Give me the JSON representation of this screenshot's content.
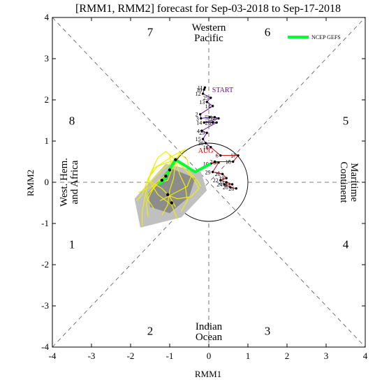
{
  "chart_data": {
    "type": "scatter",
    "title": "[RMM1, RMM2] forecast for Sep-03-2018 to Sep-17-2018",
    "xlabel": "RMM1",
    "ylabel": "RMM2",
    "xlim": [
      -4,
      4
    ],
    "ylim": [
      -4,
      4
    ],
    "xticks": [
      "-4",
      "-3",
      "-2",
      "-1",
      "0",
      "1",
      "2",
      "3",
      "4"
    ],
    "yticks": [
      "-4",
      "-3",
      "-2",
      "-1",
      "0",
      "1",
      "2",
      "3",
      "4"
    ],
    "grid": false,
    "legend": {
      "placement": "top-right",
      "entries": [
        {
          "name": "NCEP GEFS",
          "color": "#00ff33"
        }
      ]
    },
    "phase_numbers": [
      {
        "label": "7",
        "x": -1.5,
        "y": 3.65
      },
      {
        "label": "6",
        "x": 1.5,
        "y": 3.65
      },
      {
        "label": "8",
        "x": -3.5,
        "y": 1.5
      },
      {
        "label": "5",
        "x": 3.5,
        "y": 1.5
      },
      {
        "label": "1",
        "x": -3.5,
        "y": -1.5
      },
      {
        "label": "4",
        "x": 3.5,
        "y": -1.5
      },
      {
        "label": "2",
        "x": -1.5,
        "y": -3.6
      },
      {
        "label": "3",
        "x": 1.5,
        "y": -3.6
      }
    ],
    "regions": {
      "top": [
        "Western",
        "Pacific"
      ],
      "bottom": [
        "Indian",
        "Ocean"
      ],
      "left": [
        "West. Hem.",
        "and Africa"
      ],
      "right": [
        "Maritime",
        "Continent"
      ]
    },
    "observed": {
      "series": [
        {
          "name": "",
          "color": "#6a0dad",
          "month_label": "START",
          "points": [
            {
              "x": -0.1,
              "y": 2.3,
              "label": "11"
            },
            {
              "x": -0.12,
              "y": 2.25,
              "label": "10"
            },
            {
              "x": -0.15,
              "y": 2.15,
              "label": "12"
            },
            {
              "x": 0.05,
              "y": 2.05,
              "label": "25"
            },
            {
              "x": -0.05,
              "y": 1.95,
              "label": "13"
            },
            {
              "x": 0.1,
              "y": 1.85,
              "label": "14"
            },
            {
              "x": -0.22,
              "y": 1.65,
              "label": "2"
            },
            {
              "x": -0.2,
              "y": 1.55,
              "label": "3"
            },
            {
              "x": 0.02,
              "y": 1.58,
              "label": "5"
            },
            {
              "x": 0.15,
              "y": 1.58,
              "label": "31"
            },
            {
              "x": 0.25,
              "y": 1.55,
              "label": "30"
            },
            {
              "x": -0.12,
              "y": 1.45,
              "label": "14"
            },
            {
              "x": 0.1,
              "y": 1.45,
              "label": "28"
            },
            {
              "x": 0.2,
              "y": 1.45,
              "label": "27"
            },
            {
              "x": -0.18,
              "y": 1.25,
              "label": "4"
            },
            {
              "x": -0.05,
              "y": 1.2,
              "label": "29"
            },
            {
              "x": -0.15,
              "y": 1.05,
              "label": "15"
            },
            {
              "x": -0.08,
              "y": 0.95,
              "label": "30"
            },
            {
              "x": 0.05,
              "y": 0.85,
              "label": "16"
            }
          ]
        },
        {
          "name": "",
          "color": "#cc0000",
          "month_label": "AUG",
          "points": [
            {
              "x": 0.05,
              "y": 0.85,
              "label": "1"
            },
            {
              "x": 0.3,
              "y": 0.65,
              "label": "6"
            },
            {
              "x": 0.75,
              "y": 0.65,
              "label": "17"
            },
            {
              "x": 0.62,
              "y": 0.5,
              "label": "18"
            },
            {
              "x": 0.15,
              "y": 0.5,
              "label": "2"
            },
            {
              "x": 0.05,
              "y": 0.45,
              "label": "10"
            },
            {
              "x": 0.25,
              "y": 0.48,
              "label": "9"
            },
            {
              "x": 0.1,
              "y": 0.25,
              "label": "29"
            },
            {
              "x": 0.35,
              "y": 0.2,
              "label": "20"
            },
            {
              "x": 0.45,
              "y": 0.1,
              "label": "19"
            },
            {
              "x": 0.3,
              "y": 0.05,
              "label": "22"
            },
            {
              "x": 0.45,
              "y": 0.0,
              "label": "21"
            },
            {
              "x": 0.6,
              "y": -0.05,
              "label": "23"
            },
            {
              "x": 0.4,
              "y": -0.05,
              "label": "24"
            },
            {
              "x": 0.55,
              "y": -0.12,
              "label": "26"
            },
            {
              "x": 0.7,
              "y": -0.15,
              "label": "26"
            }
          ]
        }
      ]
    },
    "forecast_mean": {
      "name": "NCEP GEFS",
      "color": "#00ff33",
      "points": [
        {
          "x": 0.05,
          "y": 0.45
        },
        {
          "x": -0.35,
          "y": 0.25
        },
        {
          "x": -0.85,
          "y": 0.55
        },
        {
          "x": -0.95,
          "y": 0.4
        },
        {
          "x": -1.05,
          "y": 0.22
        },
        {
          "x": -1.15,
          "y": 0.05
        },
        {
          "x": -1.28,
          "y": -0.05
        }
      ]
    },
    "ensemble_spread_outer": [
      {
        "x": -1.75,
        "y": -1.1
      },
      {
        "x": -1.9,
        "y": -0.4
      },
      {
        "x": -1.1,
        "y": 0.45
      },
      {
        "x": -0.2,
        "y": 0.25
      },
      {
        "x": -0.05,
        "y": -0.2
      },
      {
        "x": -0.7,
        "y": -0.85
      }
    ],
    "ensemble_spread_inner": [
      {
        "x": -1.5,
        "y": -0.6
      },
      {
        "x": -1.55,
        "y": -0.25
      },
      {
        "x": -1.0,
        "y": 0.35
      },
      {
        "x": -0.35,
        "y": 0.1
      },
      {
        "x": -0.5,
        "y": -0.35
      },
      {
        "x": -1.0,
        "y": -0.75
      }
    ],
    "ensemble_member_color": "#eeee00",
    "ensemble_members": [
      [
        [
          -0.85,
          0.55
        ],
        [
          -1.1,
          0.75
        ],
        [
          -1.3,
          0.6
        ],
        [
          -1.5,
          0.2
        ],
        [
          -1.6,
          -0.2
        ],
        [
          -1.7,
          -0.7
        ],
        [
          -1.7,
          -1.05
        ]
      ],
      [
        [
          -0.85,
          0.55
        ],
        [
          -1.0,
          0.3
        ],
        [
          -1.2,
          0.1
        ],
        [
          -1.45,
          -0.2
        ],
        [
          -1.6,
          -0.5
        ],
        [
          -1.55,
          -0.85
        ]
      ],
      [
        [
          -0.85,
          0.55
        ],
        [
          -0.6,
          0.8
        ],
        [
          -0.9,
          0.65
        ],
        [
          -1.3,
          0.4
        ],
        [
          -1.55,
          0.1
        ],
        [
          -1.7,
          -0.3
        ],
        [
          -1.85,
          -0.45
        ]
      ],
      [
        [
          -0.85,
          0.55
        ],
        [
          -0.75,
          0.2
        ],
        [
          -0.6,
          -0.1
        ],
        [
          -0.55,
          -0.45
        ],
        [
          -0.7,
          -0.7
        ]
      ],
      [
        [
          -0.85,
          0.55
        ],
        [
          -0.9,
          0.1
        ],
        [
          -1.0,
          -0.2
        ],
        [
          -1.05,
          -0.55
        ],
        [
          -1.2,
          -0.8
        ]
      ],
      [
        [
          -0.85,
          0.55
        ],
        [
          -1.2,
          0.3
        ],
        [
          -1.5,
          0.0
        ],
        [
          -1.3,
          -0.3
        ],
        [
          -0.95,
          -0.55
        ],
        [
          -0.8,
          -0.9
        ]
      ],
      [
        [
          -0.85,
          0.55
        ],
        [
          -0.4,
          0.1
        ],
        [
          -0.25,
          -0.15
        ],
        [
          -0.45,
          -0.35
        ],
        [
          -0.8,
          -0.4
        ],
        [
          -1.1,
          -0.3
        ]
      ],
      [
        [
          -0.85,
          0.55
        ],
        [
          -1.05,
          0.05
        ],
        [
          -1.35,
          -0.05
        ],
        [
          -1.6,
          -0.35
        ],
        [
          -1.4,
          -0.65
        ]
      ],
      [
        [
          -0.85,
          0.55
        ],
        [
          -0.65,
          0.35
        ],
        [
          -0.45,
          0.15
        ],
        [
          -0.55,
          -0.1
        ],
        [
          -0.85,
          -0.25
        ],
        [
          -1.25,
          -0.45
        ]
      ],
      [
        [
          -0.85,
          0.55
        ],
        [
          -1.0,
          0.65
        ],
        [
          -0.95,
          0.35
        ],
        [
          -1.15,
          0.15
        ],
        [
          -1.45,
          -0.1
        ],
        [
          -1.8,
          -0.25
        ]
      ],
      [
        [
          -0.85,
          0.55
        ],
        [
          -0.75,
          0.7
        ],
        [
          -0.55,
          0.55
        ],
        [
          -0.5,
          0.25
        ],
        [
          -0.3,
          0.05
        ],
        [
          -0.2,
          -0.1
        ]
      ],
      [
        [
          -0.85,
          0.55
        ],
        [
          -1.15,
          0.45
        ],
        [
          -1.4,
          0.35
        ],
        [
          -1.55,
          0.05
        ],
        [
          -1.2,
          -0.15
        ],
        [
          -1.0,
          -0.35
        ],
        [
          -0.85,
          -0.6
        ]
      ]
    ],
    "forecast_black_points": [
      {
        "x": -0.85,
        "y": 0.55
      },
      {
        "x": -1.0,
        "y": 0.3
      },
      {
        "x": -1.1,
        "y": 0.15
      },
      {
        "x": -1.2,
        "y": 0.05
      },
      {
        "x": -1.05,
        "y": -0.3
      },
      {
        "x": -0.95,
        "y": -0.5
      }
    ]
  }
}
